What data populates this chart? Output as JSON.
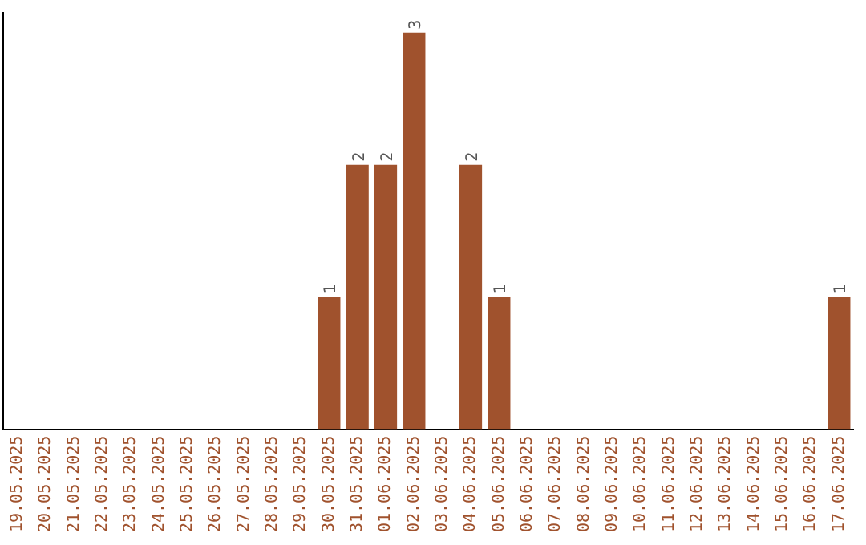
{
  "chart_data": {
    "type": "bar",
    "categories": [
      "19.05.2025",
      "20.05.2025",
      "21.05.2025",
      "22.05.2025",
      "23.05.2025",
      "24.05.2025",
      "25.05.2025",
      "26.05.2025",
      "27.05.2025",
      "28.05.2025",
      "29.05.2025",
      "30.05.2025",
      "31.05.2025",
      "01.06.2025",
      "02.06.2025",
      "03.06.2025",
      "04.06.2025",
      "05.06.2025",
      "06.06.2025",
      "07.06.2025",
      "08.06.2025",
      "09.06.2025",
      "10.06.2025",
      "11.06.2025",
      "12.06.2025",
      "13.06.2025",
      "14.06.2025",
      "15.06.2025",
      "16.06.2025",
      "17.06.2025"
    ],
    "values": [
      0,
      0,
      0,
      0,
      0,
      0,
      0,
      0,
      0,
      0,
      0,
      1,
      2,
      2,
      3,
      0,
      2,
      1,
      0,
      0,
      0,
      0,
      0,
      0,
      0,
      0,
      0,
      0,
      0,
      1
    ],
    "value_labels": [
      null,
      null,
      null,
      null,
      null,
      null,
      null,
      null,
      null,
      null,
      null,
      "1",
      "2",
      "2",
      "3",
      null,
      "2",
      "1",
      null,
      null,
      null,
      null,
      null,
      null,
      null,
      null,
      null,
      null,
      null,
      "1"
    ],
    "color": "#a0522d",
    "grid": false,
    "legend": false,
    "tick_labels": "x"
  }
}
